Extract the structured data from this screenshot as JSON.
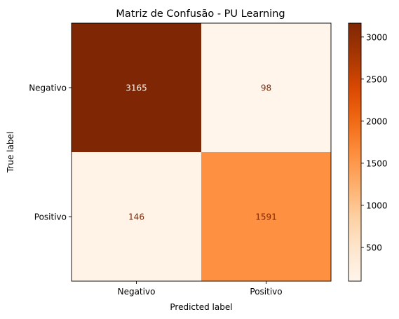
{
  "chart_data": {
    "type": "heatmap",
    "title": "Matriz de Confusão - PU Learning",
    "xlabel": "Predicted label",
    "ylabel": "True label",
    "x_categories": [
      "Negativo",
      "Positivo"
    ],
    "y_categories": [
      "Negativo",
      "Positivo"
    ],
    "values": [
      [
        3165,
        98
      ],
      [
        146,
        1591
      ]
    ],
    "colormap": "Oranges",
    "colorbar": {
      "ticks": [
        500,
        1000,
        1500,
        2000,
        2500,
        3000
      ],
      "range": [
        98,
        3165
      ]
    },
    "colors": {
      "low": "#fff5eb",
      "high": "#7f2704",
      "text_on_dark": "#fff5eb",
      "text_on_light": "#7f2704"
    },
    "grid": false
  }
}
